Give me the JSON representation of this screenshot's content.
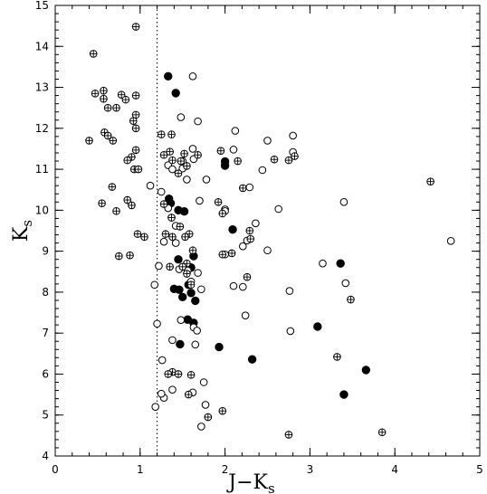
{
  "chart_data": {
    "type": "scatter",
    "xlabel": {
      "main": "J−K",
      "sub": "s"
    },
    "ylabel": {
      "main": "K",
      "sub": "s"
    },
    "xlim": [
      0,
      5
    ],
    "ylim": [
      4,
      15
    ],
    "x_ticks": [
      "0",
      "1",
      "2",
      "3",
      "4",
      "5"
    ],
    "y_ticks": [
      "4",
      "5",
      "6",
      "7",
      "8",
      "9",
      "10",
      "11",
      "12",
      "13",
      "14",
      "15"
    ],
    "reference_line": {
      "x": 1.2,
      "style": "dotted"
    },
    "grid": false,
    "marker_colors": {
      "stroke": "#000000",
      "filled": "#000000",
      "open": "#ffffff"
    },
    "series": [
      {
        "marker": "filled-circle",
        "points": [
          [
            1.33,
            13.27
          ],
          [
            1.42,
            12.86
          ],
          [
            1.34,
            10.28
          ],
          [
            1.36,
            10.17
          ],
          [
            1.45,
            10.0
          ],
          [
            1.52,
            9.97
          ],
          [
            2.0,
            11.19
          ],
          [
            2.0,
            11.09
          ],
          [
            2.09,
            9.53
          ],
          [
            1.45,
            8.8
          ],
          [
            1.6,
            8.6
          ],
          [
            1.63,
            8.88
          ],
          [
            1.4,
            8.08
          ],
          [
            1.46,
            8.06
          ],
          [
            1.5,
            7.88
          ],
          [
            1.57,
            8.18
          ],
          [
            1.6,
            7.98
          ],
          [
            1.65,
            7.79
          ],
          [
            1.56,
            7.33
          ],
          [
            1.63,
            7.25
          ],
          [
            1.47,
            6.73
          ],
          [
            1.93,
            6.66
          ],
          [
            2.32,
            6.36
          ],
          [
            3.09,
            7.16
          ],
          [
            3.36,
            8.7
          ],
          [
            3.66,
            6.1
          ],
          [
            3.4,
            5.5
          ]
        ]
      },
      {
        "marker": "open-circle",
        "points": [
          [
            1.62,
            13.27
          ],
          [
            1.48,
            12.27
          ],
          [
            1.68,
            12.17
          ],
          [
            1.62,
            11.5
          ],
          [
            2.12,
            11.94
          ],
          [
            2.1,
            11.48
          ],
          [
            1.63,
            11.25
          ],
          [
            1.78,
            10.75
          ],
          [
            1.7,
            10.23
          ],
          [
            1.25,
            10.45
          ],
          [
            1.22,
            8.64
          ],
          [
            1.46,
            8.56
          ],
          [
            1.56,
            8.53
          ],
          [
            1.6,
            8.26
          ],
          [
            1.68,
            8.47
          ],
          [
            1.72,
            8.07
          ],
          [
            1.48,
            7.32
          ],
          [
            1.63,
            7.14
          ],
          [
            1.67,
            7.06
          ],
          [
            1.65,
            6.72
          ],
          [
            1.38,
            6.83
          ],
          [
            1.26,
            6.34
          ],
          [
            1.38,
            5.62
          ],
          [
            1.62,
            5.55
          ],
          [
            1.28,
            5.42
          ],
          [
            1.25,
            5.52
          ],
          [
            1.18,
            5.2
          ],
          [
            1.72,
            4.72
          ],
          [
            1.77,
            5.25
          ],
          [
            1.8,
            4.95
          ],
          [
            1.75,
            5.8
          ],
          [
            2.0,
            10.02
          ],
          [
            2.0,
            9.98
          ],
          [
            2.21,
            9.12
          ],
          [
            2.26,
            9.26
          ],
          [
            2.21,
            8.13
          ],
          [
            2.1,
            8.15
          ],
          [
            2.0,
            8.92
          ],
          [
            2.36,
            9.68
          ],
          [
            2.29,
            10.56
          ],
          [
            2.44,
            10.98
          ],
          [
            2.5,
            11.7
          ],
          [
            2.63,
            10.03
          ],
          [
            2.8,
            11.82
          ],
          [
            2.8,
            11.42
          ],
          [
            2.5,
            9.02
          ],
          [
            2.24,
            7.43
          ],
          [
            2.76,
            8.03
          ],
          [
            2.77,
            7.05
          ],
          [
            3.15,
            8.7
          ],
          [
            3.4,
            10.2
          ],
          [
            3.42,
            8.22
          ],
          [
            4.66,
            9.25
          ],
          [
            1.33,
            10.05
          ],
          [
            1.5,
            11.2
          ],
          [
            1.33,
            11.1
          ],
          [
            1.38,
            11.0
          ],
          [
            1.5,
            11.02
          ],
          [
            1.55,
            10.75
          ],
          [
            1.12,
            10.6
          ],
          [
            1.17,
            8.18
          ],
          [
            1.2,
            7.23
          ],
          [
            1.37,
            9.82
          ],
          [
            1.42,
            9.62
          ],
          [
            1.28,
            9.23
          ],
          [
            1.42,
            9.2
          ]
        ]
      },
      {
        "marker": "crossed-circle",
        "points": [
          [
            0.45,
            13.82
          ],
          [
            0.95,
            14.48
          ],
          [
            0.57,
            12.92
          ],
          [
            0.57,
            12.72
          ],
          [
            0.47,
            12.85
          ],
          [
            0.78,
            12.82
          ],
          [
            0.83,
            12.7
          ],
          [
            0.95,
            12.8
          ],
          [
            0.62,
            12.5
          ],
          [
            0.72,
            12.5
          ],
          [
            0.95,
            12.33
          ],
          [
            0.92,
            12.18
          ],
          [
            0.95,
            12.0
          ],
          [
            0.58,
            11.9
          ],
          [
            0.62,
            11.82
          ],
          [
            0.68,
            11.7
          ],
          [
            0.4,
            11.7
          ],
          [
            0.95,
            11.47
          ],
          [
            0.9,
            11.3
          ],
          [
            0.85,
            11.22
          ],
          [
            0.93,
            11.0
          ],
          [
            0.98,
            11.0
          ],
          [
            0.55,
            10.17
          ],
          [
            0.72,
            9.98
          ],
          [
            0.67,
            10.57
          ],
          [
            0.9,
            10.12
          ],
          [
            0.85,
            10.25
          ],
          [
            1.05,
            9.35
          ],
          [
            0.97,
            9.42
          ],
          [
            0.88,
            8.9
          ],
          [
            0.75,
            8.88
          ],
          [
            1.37,
            11.85
          ],
          [
            1.28,
            11.35
          ],
          [
            1.35,
            11.43
          ],
          [
            1.38,
            11.22
          ],
          [
            1.48,
            11.2
          ],
          [
            1.52,
            11.38
          ],
          [
            1.68,
            11.35
          ],
          [
            1.55,
            11.08
          ],
          [
            1.45,
            10.9
          ],
          [
            1.28,
            10.15
          ],
          [
            1.37,
            9.82
          ],
          [
            1.47,
            9.6
          ],
          [
            1.58,
            9.42
          ],
          [
            1.62,
            9.02
          ],
          [
            1.55,
            8.7
          ],
          [
            1.5,
            8.62
          ],
          [
            1.55,
            8.45
          ],
          [
            1.35,
            8.62
          ],
          [
            1.6,
            8.18
          ],
          [
            1.38,
            9.35
          ],
          [
            1.53,
            9.35
          ],
          [
            1.3,
            9.42
          ],
          [
            1.38,
            6.05
          ],
          [
            1.33,
            6.0
          ],
          [
            1.45,
            6.0
          ],
          [
            1.6,
            5.98
          ],
          [
            1.57,
            5.5
          ],
          [
            1.8,
            4.95
          ],
          [
            1.97,
            5.1
          ],
          [
            1.97,
            8.92
          ],
          [
            1.97,
            9.92
          ],
          [
            2.08,
            8.95
          ],
          [
            2.15,
            11.2
          ],
          [
            2.21,
            10.54
          ],
          [
            2.58,
            11.24
          ],
          [
            2.82,
            11.32
          ],
          [
            2.75,
            11.22
          ],
          [
            2.75,
            4.52
          ],
          [
            3.32,
            6.42
          ],
          [
            3.48,
            7.82
          ],
          [
            3.85,
            4.58
          ],
          [
            4.42,
            10.7
          ],
          [
            2.26,
            8.37
          ],
          [
            2.29,
            9.5
          ],
          [
            2.3,
            9.3
          ],
          [
            1.25,
            11.85
          ],
          [
            1.92,
            10.2
          ],
          [
            1.95,
            11.45
          ]
        ]
      }
    ]
  }
}
